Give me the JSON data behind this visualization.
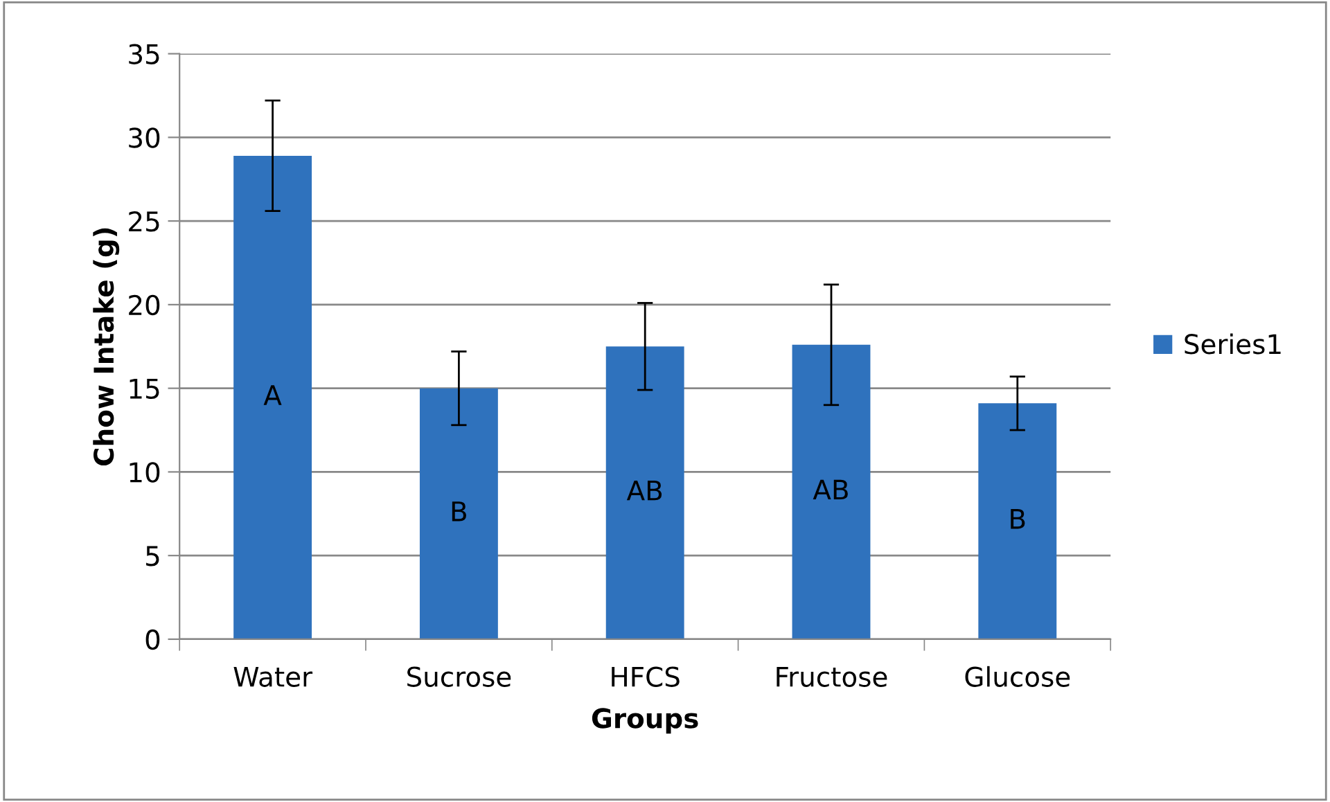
{
  "chart_data": {
    "type": "bar",
    "xlabel": "Groups",
    "ylabel": "Chow Intake (g)",
    "categories": [
      "Water",
      "Sucrose",
      "HFCS",
      "Fructose",
      "Glucose"
    ],
    "series": [
      {
        "name": "Series1",
        "color": "#2f72bd",
        "values": [
          28.9,
          15.0,
          17.5,
          17.6,
          14.1
        ],
        "errors": [
          3.3,
          2.2,
          2.6,
          3.6,
          1.6
        ]
      }
    ],
    "ylim": [
      0,
      35
    ],
    "yticks": [
      0,
      5,
      10,
      15,
      20,
      25,
      30,
      35
    ],
    "grid": "y",
    "legend": "right",
    "annotations": [
      "A",
      "B",
      "AB",
      "AB",
      "B"
    ]
  }
}
